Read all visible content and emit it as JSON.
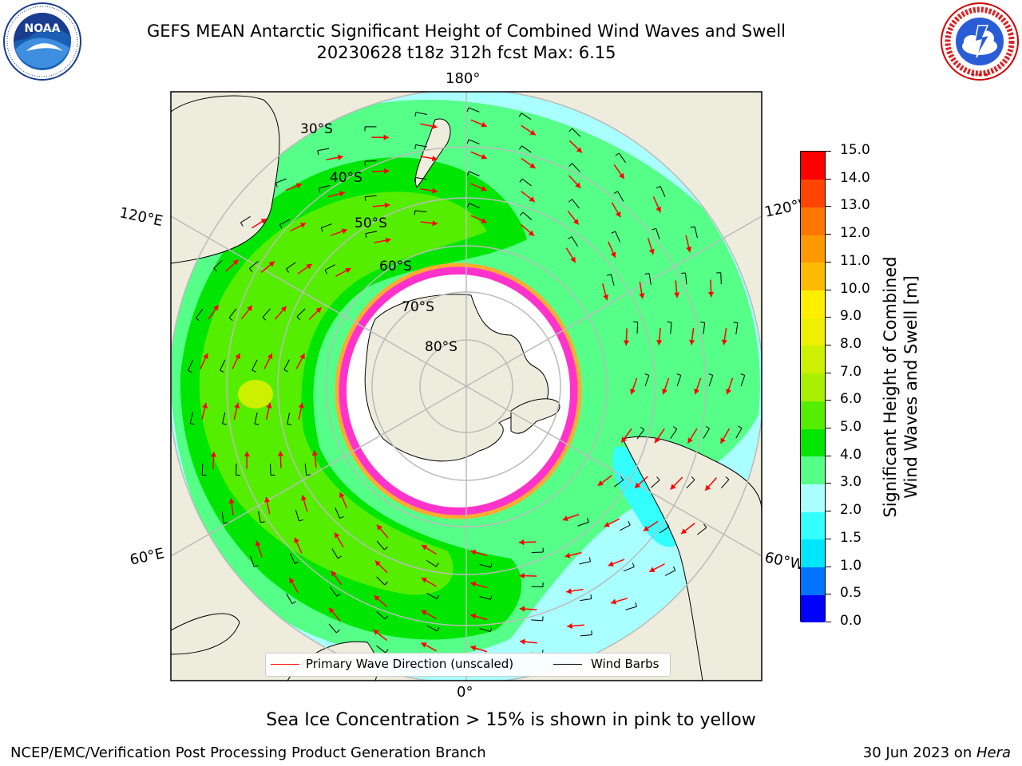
{
  "title": {
    "line1": "GEFS MEAN Antarctic Significant Height of Combined Wind Waves and Swell",
    "line2": "20230628 t18z 312h fcst   Max: 6.15"
  },
  "logos": {
    "left": "NOAA",
    "right": "NATIONAL WEATHER SERVICE"
  },
  "map": {
    "projection": "south-polar-stereographic",
    "longitude_labels": {
      "top": "180°",
      "bottom": "0°",
      "upper_left": "120°E",
      "upper_right": "120°W",
      "lower_left": "60°E",
      "lower_right": "60°W"
    },
    "latitude_labels": [
      "30°S",
      "40°S",
      "50°S",
      "60°S",
      "70°S",
      "80°S"
    ],
    "colors": {
      "land": "#eeecdc",
      "coastline": "#000000",
      "graticule": "#bbbbbb",
      "wave_direction_arrows": "#ff0000",
      "wind_barbs": "#000000",
      "sea_ice": "#ff33cc",
      "ice_edge": "#ffaa33"
    }
  },
  "legend": {
    "wave": "Primary Wave Direction (unscaled)",
    "wind": "Wind Barbs"
  },
  "colorbar": {
    "title_line1": "Significant Height of Combined",
    "title_line2": "Wind Waves and Swell [m]",
    "ticks": [
      "0.0",
      "0.5",
      "1.0",
      "1.5",
      "2.0",
      "3.0",
      "4.0",
      "5.0",
      "6.0",
      "7.0",
      "8.0",
      "9.0",
      "10.0",
      "11.0",
      "12.0",
      "13.0",
      "14.0",
      "15.0"
    ],
    "colors": [
      "#0000ff",
      "#0073ff",
      "#00e6ff",
      "#33ffff",
      "#aaffff",
      "#55ff88",
      "#00e600",
      "#55ee00",
      "#aaee00",
      "#ccf000",
      "#eef000",
      "#ffee00",
      "#ffbb00",
      "#ff9900",
      "#ff7700",
      "#ff4400",
      "#ff0000"
    ]
  },
  "notes": {
    "sea_ice": "Sea Ice Concentration > 15% is shown in pink to yellow"
  },
  "footer": {
    "left": "NCEP/EMC/Verification Post Processing Product Generation Branch",
    "date": "30 Jun 2023 on ",
    "machine": "Hera"
  }
}
